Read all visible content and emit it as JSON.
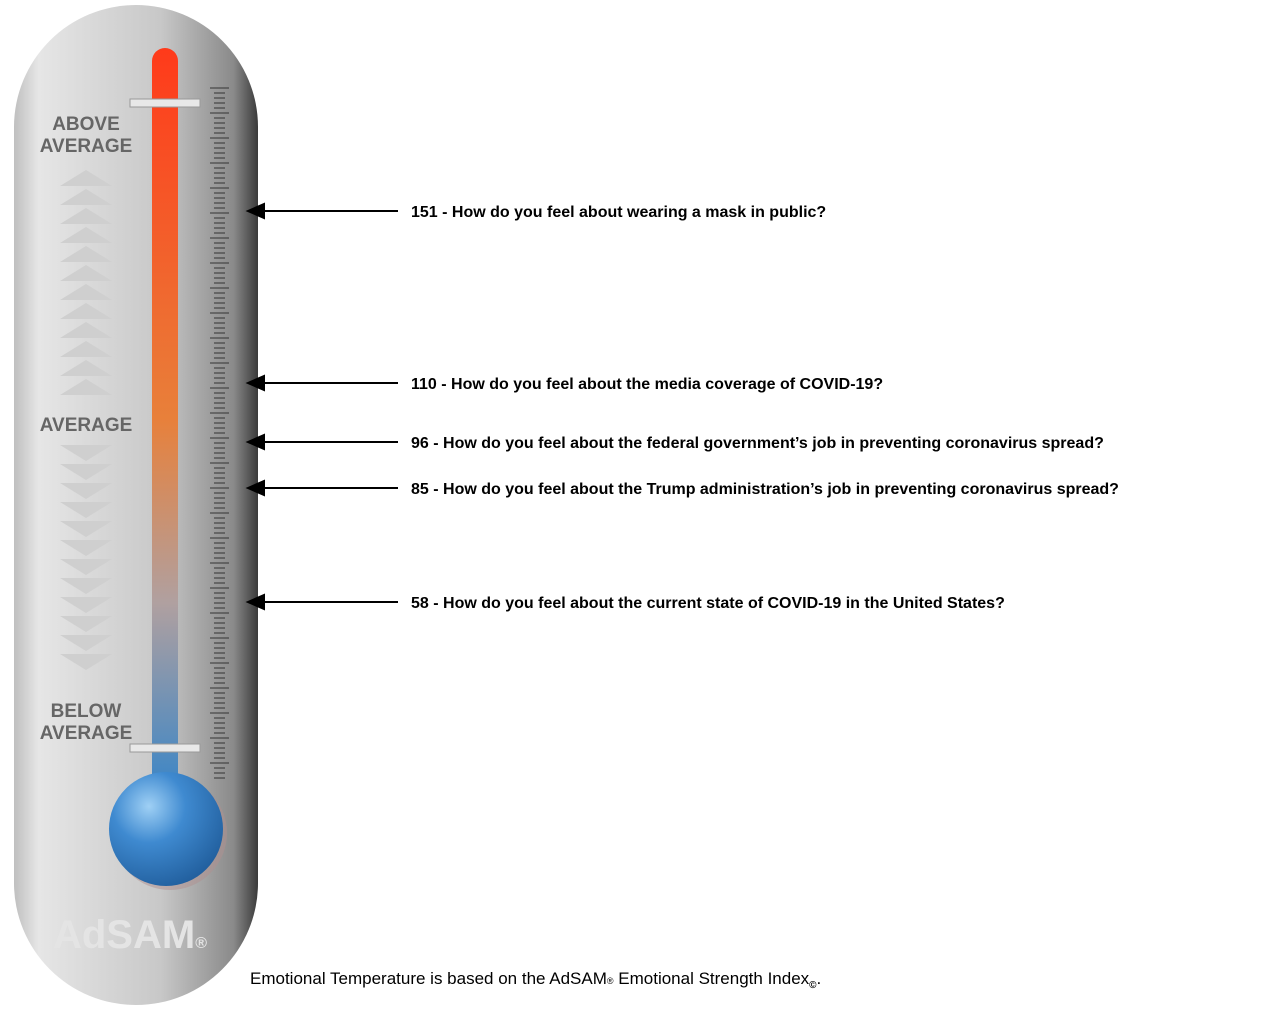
{
  "thermometer": {
    "labels": {
      "above": [
        "ABOVE",
        "AVERAGE"
      ],
      "average": "AVERAGE",
      "below": [
        "BELOW",
        "AVERAGE"
      ]
    },
    "brand": "AdSAM",
    "brand_mark": "®"
  },
  "items": [
    {
      "text": "151 - How do you feel about wearing a mask in public?"
    },
    {
      "text": "110 - How do you feel about the media coverage of COVID-19?"
    },
    {
      "text": "96 - How do you feel about the federal government’s job in preventing coronavirus spread?"
    },
    {
      "text": "85 - How do you feel about the Trump administration’s job in preventing coronavirus spread?"
    },
    {
      "text": "58 - How do you feel about the current state of COVID-19 in the United States?"
    }
  ],
  "footnote": {
    "main": "Emotional Temperature is based on the AdSAM",
    "reg": "®",
    "middle": " Emotional Strength Index",
    "copy": "©",
    "end": "."
  }
}
